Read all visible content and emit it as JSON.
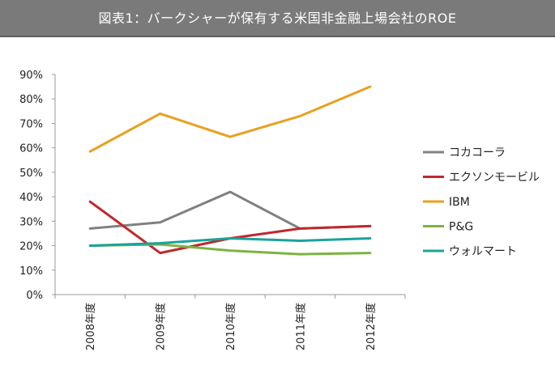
{
  "chart_data": {
    "type": "line",
    "title": "図表1：バークシャーが保有する米国非金融上場会社のROE",
    "categories": [
      "2008年度",
      "2009年度",
      "2010年度",
      "2011年度",
      "2012年度"
    ],
    "y_ticks": [
      "0%",
      "10%",
      "20%",
      "30%",
      "40%",
      "50%",
      "60%",
      "70%",
      "80%",
      "90%"
    ],
    "ylim": [
      0,
      90
    ],
    "xlabel": "",
    "ylabel": "",
    "grid": false,
    "legend_position": "right",
    "series": [
      {
        "name": "コカコーラ",
        "color": "#808080",
        "values": [
          27,
          29.5,
          42,
          27,
          28
        ]
      },
      {
        "name": "エクソンモービル",
        "color": "#c0282d",
        "values": [
          38,
          17,
          23,
          27,
          28
        ]
      },
      {
        "name": "IBM",
        "color": "#e9a020",
        "values": [
          58.5,
          74,
          64.5,
          73,
          85
        ]
      },
      {
        "name": "P&G",
        "color": "#7cb342",
        "values": [
          20,
          20.5,
          18,
          16.5,
          17
        ]
      },
      {
        "name": "ウォルマート",
        "color": "#1aa39a",
        "values": [
          20,
          21,
          23,
          22,
          23
        ]
      }
    ]
  }
}
